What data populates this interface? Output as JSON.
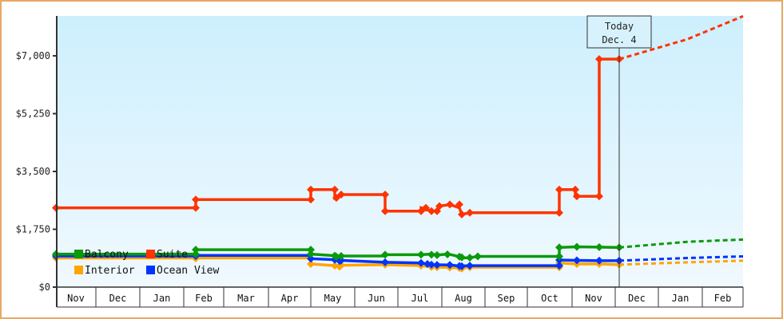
{
  "chart_data": {
    "type": "line",
    "title": "",
    "xlabel": "",
    "ylabel": "",
    "ylim": [
      0,
      7000
    ],
    "y_ticks": [
      {
        "value": 0,
        "label": "$0"
      },
      {
        "value": 1750,
        "label": "$1,750"
      },
      {
        "value": 3500,
        "label": "$3,500"
      },
      {
        "value": 5250,
        "label": "$5,250"
      },
      {
        "value": 7000,
        "label": "$7,000"
      }
    ],
    "x_months": [
      "Nov",
      "Dec",
      "Jan",
      "Feb",
      "Mar",
      "Apr",
      "May",
      "Jun",
      "Jul",
      "Aug",
      "Sep",
      "Oct",
      "Nov",
      "Dec",
      "Jan",
      "Feb"
    ],
    "x_month_edges": [
      70,
      120,
      175,
      230,
      280,
      336,
      389,
      444,
      498,
      553,
      607,
      660,
      716,
      770,
      824,
      879,
      930
    ],
    "grid": false,
    "legend_position": "inside-bottom-left",
    "today_marker": {
      "line1": "Today",
      "line2": "Dec. 4",
      "x": 775
    },
    "series": [
      {
        "name": "Balcony",
        "color": "#0a9a0a",
        "points": [
          [
            70,
            1000
          ],
          [
            245,
            1000
          ],
          [
            245,
            1130
          ],
          [
            389,
            1130
          ],
          [
            389,
            1000
          ],
          [
            419,
            950
          ],
          [
            425,
            910
          ],
          [
            427,
            940
          ],
          [
            482,
            940
          ],
          [
            482,
            980
          ],
          [
            527,
            980
          ],
          [
            540,
            1000
          ],
          [
            547,
            970
          ],
          [
            560,
            1000
          ],
          [
            563,
            990
          ],
          [
            575,
            920
          ],
          [
            578,
            880
          ],
          [
            588,
            890
          ],
          [
            598,
            930
          ],
          [
            700,
            930
          ],
          [
            700,
            1200
          ],
          [
            722,
            1220
          ],
          [
            750,
            1210
          ],
          [
            775,
            1200
          ]
        ],
        "markers": [
          [
            70,
            1000
          ],
          [
            245,
            1000
          ],
          [
            245,
            1130
          ],
          [
            389,
            1130
          ],
          [
            389,
            1000
          ],
          [
            419,
            950
          ],
          [
            421,
            920
          ],
          [
            427,
            940
          ],
          [
            482,
            980
          ],
          [
            527,
            980
          ],
          [
            540,
            980
          ],
          [
            547,
            970
          ],
          [
            560,
            990
          ],
          [
            575,
            920
          ],
          [
            578,
            900
          ],
          [
            588,
            890
          ],
          [
            598,
            930
          ],
          [
            700,
            930
          ],
          [
            700,
            1200
          ],
          [
            722,
            1220
          ],
          [
            750,
            1210
          ],
          [
            775,
            1200
          ]
        ],
        "forecast": [
          [
            775,
            1200
          ],
          [
            860,
            1370
          ],
          [
            930,
            1440
          ]
        ]
      },
      {
        "name": "Suite",
        "color": "#ff3300",
        "points": [
          [
            70,
            2400
          ],
          [
            245,
            2400
          ],
          [
            245,
            2650
          ],
          [
            389,
            2650
          ],
          [
            389,
            2950
          ],
          [
            419,
            2950
          ],
          [
            419,
            2700
          ],
          [
            427,
            2800
          ],
          [
            482,
            2800
          ],
          [
            482,
            2300
          ],
          [
            527,
            2300
          ],
          [
            527,
            2400
          ],
          [
            540,
            2300
          ],
          [
            547,
            2300
          ],
          [
            550,
            2450
          ],
          [
            563,
            2500
          ],
          [
            575,
            2400
          ],
          [
            578,
            2200
          ],
          [
            588,
            2250
          ],
          [
            700,
            2250
          ],
          [
            700,
            2950
          ],
          [
            720,
            2950
          ],
          [
            720,
            2750
          ],
          [
            750,
            2750
          ],
          [
            750,
            6900
          ],
          [
            775,
            6900
          ]
        ],
        "markers": [
          [
            70,
            2400
          ],
          [
            245,
            2400
          ],
          [
            245,
            2650
          ],
          [
            389,
            2650
          ],
          [
            389,
            2950
          ],
          [
            419,
            2950
          ],
          [
            421,
            2700
          ],
          [
            427,
            2800
          ],
          [
            482,
            2800
          ],
          [
            482,
            2300
          ],
          [
            527,
            2300
          ],
          [
            533,
            2400
          ],
          [
            540,
            2300
          ],
          [
            547,
            2300
          ],
          [
            550,
            2450
          ],
          [
            563,
            2500
          ],
          [
            575,
            2500
          ],
          [
            578,
            2200
          ],
          [
            588,
            2250
          ],
          [
            700,
            2250
          ],
          [
            700,
            2950
          ],
          [
            720,
            2950
          ],
          [
            722,
            2750
          ],
          [
            750,
            2750
          ],
          [
            750,
            6900
          ],
          [
            775,
            6900
          ]
        ],
        "forecast": [
          [
            775,
            6900
          ],
          [
            860,
            7500
          ],
          [
            930,
            8200
          ]
        ]
      },
      {
        "name": "Interior",
        "color": "#ffa500",
        "points": [
          [
            70,
            880
          ],
          [
            245,
            880
          ],
          [
            245,
            880
          ],
          [
            389,
            880
          ],
          [
            389,
            700
          ],
          [
            419,
            650
          ],
          [
            427,
            660
          ],
          [
            482,
            680
          ],
          [
            527,
            650
          ],
          [
            540,
            610
          ],
          [
            563,
            590
          ],
          [
            575,
            580
          ],
          [
            588,
            600
          ],
          [
            700,
            600
          ],
          [
            700,
            730
          ],
          [
            722,
            700
          ],
          [
            750,
            700
          ],
          [
            775,
            680
          ]
        ],
        "markers": [
          [
            70,
            880
          ],
          [
            245,
            870
          ],
          [
            389,
            700
          ],
          [
            419,
            650
          ],
          [
            425,
            620
          ],
          [
            427,
            660
          ],
          [
            482,
            680
          ],
          [
            527,
            650
          ],
          [
            540,
            610
          ],
          [
            547,
            600
          ],
          [
            563,
            590
          ],
          [
            575,
            580
          ],
          [
            578,
            560
          ],
          [
            588,
            600
          ],
          [
            700,
            600
          ],
          [
            700,
            730
          ],
          [
            722,
            700
          ],
          [
            750,
            700
          ],
          [
            775,
            680
          ]
        ],
        "forecast": [
          [
            775,
            680
          ],
          [
            860,
            750
          ],
          [
            930,
            800
          ]
        ]
      },
      {
        "name": "Ocean View",
        "color": "#0033ff",
        "points": [
          [
            70,
            940
          ],
          [
            245,
            940
          ],
          [
            245,
            960
          ],
          [
            389,
            960
          ],
          [
            389,
            860
          ],
          [
            419,
            830
          ],
          [
            427,
            810
          ],
          [
            482,
            750
          ],
          [
            527,
            730
          ],
          [
            540,
            680
          ],
          [
            563,
            670
          ],
          [
            575,
            640
          ],
          [
            588,
            650
          ],
          [
            700,
            650
          ],
          [
            700,
            820
          ],
          [
            722,
            810
          ],
          [
            750,
            800
          ],
          [
            775,
            800
          ]
        ],
        "markers": [
          [
            70,
            940
          ],
          [
            245,
            940
          ],
          [
            389,
            860
          ],
          [
            419,
            830
          ],
          [
            425,
            790
          ],
          [
            427,
            810
          ],
          [
            482,
            750
          ],
          [
            527,
            730
          ],
          [
            535,
            700
          ],
          [
            540,
            680
          ],
          [
            547,
            670
          ],
          [
            563,
            670
          ],
          [
            575,
            640
          ],
          [
            578,
            630
          ],
          [
            588,
            650
          ],
          [
            700,
            650
          ],
          [
            700,
            820
          ],
          [
            722,
            810
          ],
          [
            750,
            800
          ],
          [
            775,
            800
          ]
        ],
        "forecast": [
          [
            775,
            800
          ],
          [
            860,
            880
          ],
          [
            930,
            930
          ]
        ]
      }
    ]
  },
  "legend": {
    "items": [
      {
        "label": "Balcony",
        "color": "#0a9a0a"
      },
      {
        "label": "Suite",
        "color": "#ff3300"
      },
      {
        "label": "Interior",
        "color": "#ffa500"
      },
      {
        "label": "Ocean View",
        "color": "#0033ff"
      }
    ]
  }
}
